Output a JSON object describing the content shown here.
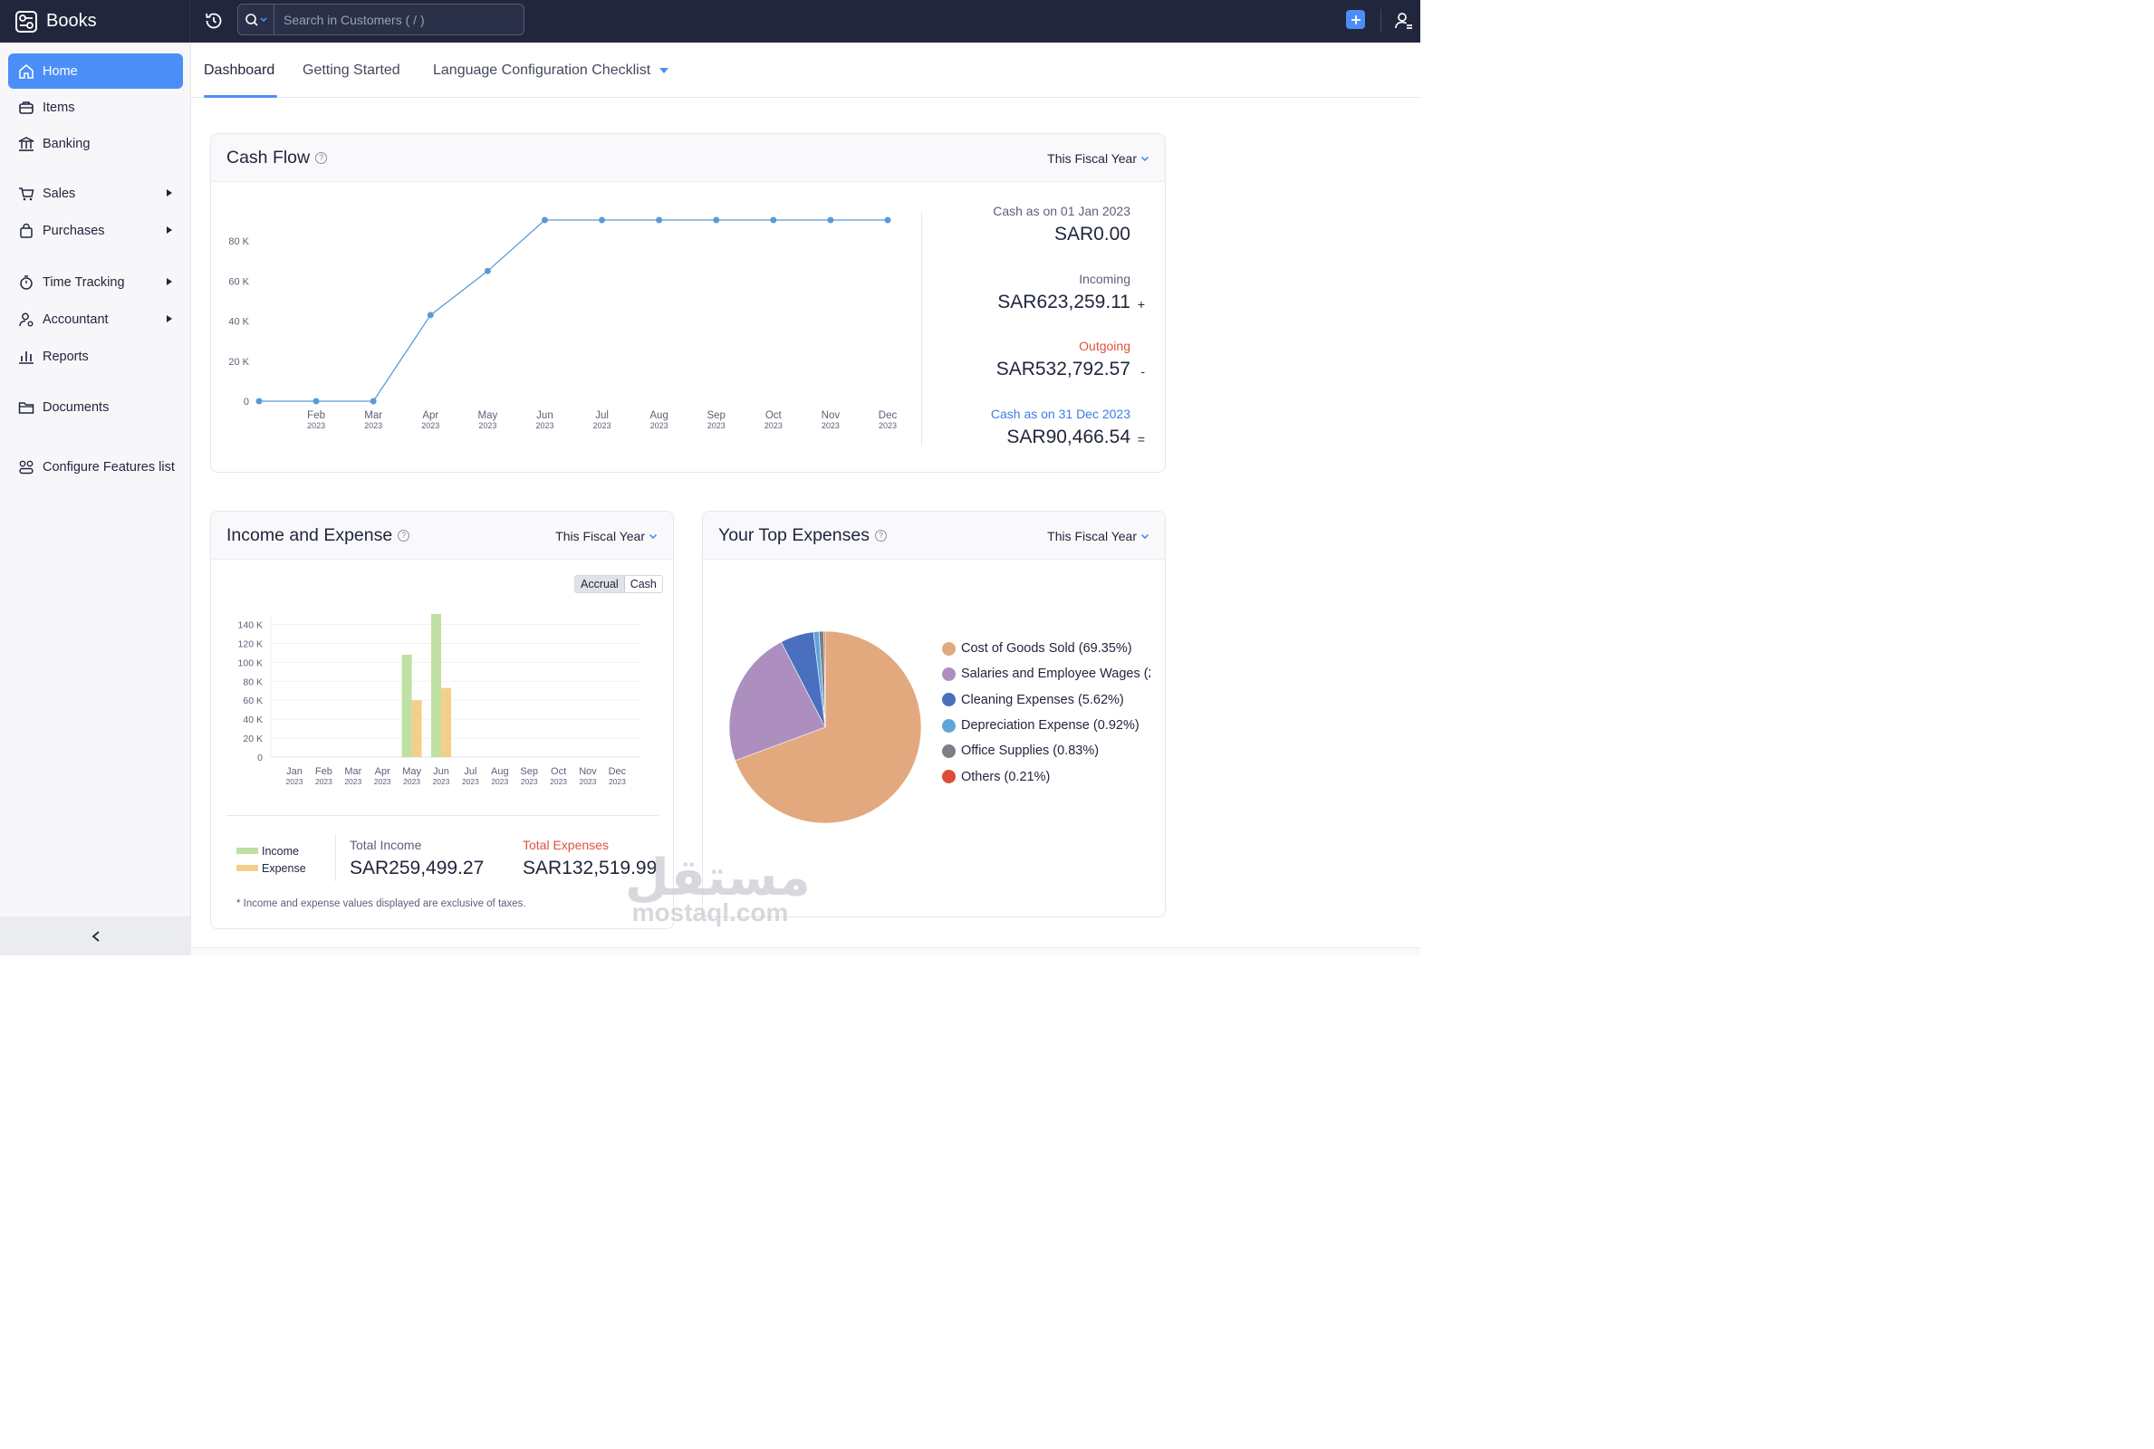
{
  "app": {
    "name": "Books"
  },
  "search": {
    "placeholder": "Search in Customers ( / )"
  },
  "sidebar": {
    "items": [
      {
        "label": "Home"
      },
      {
        "label": "Items"
      },
      {
        "label": "Banking"
      },
      {
        "label": "Sales"
      },
      {
        "label": "Purchases"
      },
      {
        "label": "Time Tracking"
      },
      {
        "label": "Accountant"
      },
      {
        "label": "Reports"
      },
      {
        "label": "Documents"
      },
      {
        "label": "Configure Features list"
      }
    ]
  },
  "tabs": [
    {
      "label": "Dashboard"
    },
    {
      "label": "Getting Started"
    },
    {
      "label": "Language Configuration Checklist"
    }
  ],
  "cash_flow": {
    "title": "Cash Flow",
    "period": "This Fiscal Year",
    "opening_label": "Cash as on 01 Jan 2023",
    "opening_value": "SAR0.00",
    "incoming_label": "Incoming",
    "incoming_value": "SAR623,259.11",
    "incoming_sign": "+",
    "outgoing_label": "Outgoing",
    "outgoing_value": "SAR532,792.57",
    "outgoing_sign": "-",
    "closing_label": "Cash as on 31 Dec 2023",
    "closing_value": "SAR90,466.54",
    "closing_sign": "=",
    "colors": {
      "line": "#5b9bd5",
      "outgoing": "#e0523d",
      "closing": "#3b7de6"
    }
  },
  "income_expense": {
    "title": "Income and Expense",
    "period": "This Fiscal Year",
    "toggle": [
      "Accrual",
      "Cash"
    ],
    "legend": [
      "Income",
      "Expense"
    ],
    "total_income_label": "Total Income",
    "total_income_value": "SAR259,499.27",
    "total_expenses_label": "Total Expenses",
    "total_expenses_value": "SAR132,519.99",
    "footnote": "* Income and expense values displayed are exclusive of taxes.",
    "colors": {
      "income": "#bfe0a3",
      "expense": "#f2d08b",
      "expense_label": "#e0523d"
    }
  },
  "top_expenses": {
    "title": "Your Top Expenses",
    "period": "This Fiscal Year",
    "legend": [
      {
        "label": "Cost of Goods Sold (69.35%)",
        "color": "#e2a97e"
      },
      {
        "label": "Salaries and Employee Wages (2",
        "color": "#ac8fbf"
      },
      {
        "label": "Cleaning Expenses (5.62%)",
        "color": "#4a6fbf"
      },
      {
        "label": "Depreciation Expense (0.92%)",
        "color": "#5ea5d9"
      },
      {
        "label": "Office Supplies (0.83%)",
        "color": "#7d7f86"
      },
      {
        "label": "Others (0.21%)",
        "color": "#de4b3a"
      }
    ]
  },
  "watermark": {
    "arabic": "مستقل",
    "latin": "mostaql.com"
  },
  "chart_data": [
    {
      "type": "line",
      "categories": [
        "Jan",
        "Feb",
        "Mar",
        "Apr",
        "May",
        "Jun",
        "Jul",
        "Aug",
        "Sep",
        "Oct",
        "Nov",
        "Dec"
      ],
      "category_sublabel": "2023",
      "values": [
        0,
        0,
        0,
        43000,
        65000,
        90466.54,
        90466.54,
        90466.54,
        90466.54,
        90466.54,
        90466.54,
        90466.54
      ],
      "ytick_labels": [
        "0",
        "20 K",
        "40 K",
        "60 K",
        "80 K"
      ],
      "yticks": [
        0,
        20000,
        40000,
        60000,
        80000
      ],
      "ylim": [
        0,
        90466.54
      ],
      "grid": false
    },
    {
      "type": "bar",
      "categories": [
        "Jan",
        "Feb",
        "Mar",
        "Apr",
        "May",
        "Jun",
        "Jul",
        "Aug",
        "Sep",
        "Oct",
        "Nov",
        "Dec"
      ],
      "category_sublabel": "2023",
      "series": [
        {
          "name": "Income",
          "values": [
            0,
            0,
            0,
            0,
            108000,
            151000,
            0,
            0,
            0,
            0,
            0,
            0
          ]
        },
        {
          "name": "Expense",
          "values": [
            0,
            0,
            0,
            0,
            60000,
            73000,
            0,
            0,
            0,
            0,
            0,
            0
          ]
        }
      ],
      "ytick_labels": [
        "0",
        "20 K",
        "40 K",
        "60 K",
        "80 K",
        "100 K",
        "120 K",
        "140 K"
      ],
      "yticks": [
        0,
        20000,
        40000,
        60000,
        80000,
        100000,
        120000,
        140000
      ],
      "ylim": [
        0,
        150000
      ],
      "grid": true
    },
    {
      "type": "pie",
      "labels": [
        "Cost of Goods Sold",
        "Salaries and Employee Wages",
        "Cleaning Expenses",
        "Depreciation Expense",
        "Office Supplies",
        "Others"
      ],
      "values": [
        69.35,
        23.07,
        5.62,
        0.92,
        0.83,
        0.21
      ]
    }
  ]
}
